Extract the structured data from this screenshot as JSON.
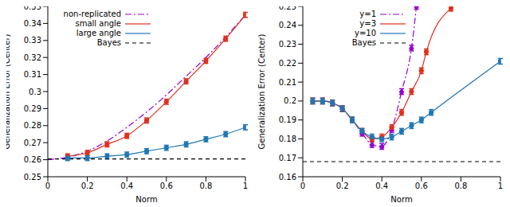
{
  "chart_data": [
    {
      "type": "line",
      "xlabel": "Norm",
      "ylabel": "Generalization Error (Center)",
      "xlim": [
        0,
        1
      ],
      "xticks": [
        0,
        0.2,
        0.4,
        0.6,
        0.8,
        1
      ],
      "ylim": [
        0.25,
        0.35
      ],
      "yticks": [
        0.25,
        0.26,
        0.27,
        0.28,
        0.29,
        0.3,
        0.31,
        0.32,
        0.33,
        0.34,
        0.35
      ],
      "legend": "upper left",
      "series": [
        {
          "name": "non-replicated",
          "color": "#9400d3",
          "line_style": "dashdot",
          "marker": "none",
          "x": [
            0,
            0.1,
            0.2,
            0.3,
            0.4,
            0.5,
            0.6,
            0.7,
            0.8,
            0.9,
            1
          ],
          "values": [
            0.26,
            0.2615,
            0.265,
            0.271,
            0.279,
            0.288,
            0.298,
            0.309,
            0.32,
            0.332,
            0.345
          ]
        },
        {
          "name": "small angle",
          "color": "#e0301e",
          "line_style": "solid",
          "marker": "circle",
          "x": [
            0.1,
            0.2,
            0.3,
            0.4,
            0.5,
            0.6,
            0.7,
            0.8,
            0.9,
            1
          ],
          "values": [
            0.262,
            0.264,
            0.269,
            0.274,
            0.283,
            0.294,
            0.306,
            0.318,
            0.331,
            0.345
          ],
          "error": [
            0.0015,
            0.0015,
            0.0015,
            0.0015,
            0.0015,
            0.0015,
            0.0015,
            0.0015,
            0.0015,
            0.0015
          ]
        },
        {
          "name": "large angle",
          "color": "#1f77b4",
          "line_style": "solid",
          "marker": "circle",
          "x": [
            0.1,
            0.2,
            0.3,
            0.4,
            0.5,
            0.6,
            0.7,
            0.8,
            0.9,
            1
          ],
          "values": [
            0.261,
            0.261,
            0.262,
            0.263,
            0.265,
            0.267,
            0.269,
            0.272,
            0.275,
            0.279
          ],
          "error": [
            0.0015,
            0.0015,
            0.0015,
            0.0015,
            0.0015,
            0.0015,
            0.0015,
            0.0015,
            0.0015,
            0.0015
          ]
        },
        {
          "name": "Bayes",
          "color": "#000000",
          "line_style": "dashed",
          "marker": "none",
          "x": [
            0,
            1
          ],
          "values": [
            0.2605,
            0.2605
          ]
        }
      ]
    },
    {
      "type": "line",
      "xlabel": "Norm",
      "ylabel": "Generalization Error (Center)",
      "xlim": [
        0,
        1
      ],
      "xticks": [
        0,
        0.2,
        0.4,
        0.6,
        0.8,
        1
      ],
      "ylim": [
        0.16,
        0.25
      ],
      "yticks": [
        0.16,
        0.17,
        0.18,
        0.19,
        0.2,
        0.21,
        0.22,
        0.23,
        0.24,
        0.25
      ],
      "legend": "upper left",
      "series": [
        {
          "name": "y=1",
          "color": "#9400d3",
          "line_style": "dashdot",
          "marker": "circle",
          "x": [
            0.05,
            0.1,
            0.15,
            0.2,
            0.25,
            0.3,
            0.35,
            0.4,
            0.45,
            0.5,
            0.55,
            0.575
          ],
          "values": [
            0.2,
            0.2,
            0.199,
            0.196,
            0.19,
            0.183,
            0.177,
            0.176,
            0.185,
            0.205,
            0.228,
            0.25
          ],
          "error": [
            0.0015,
            0.0015,
            0.0015,
            0.0015,
            0.0015,
            0.0015,
            0.0015,
            0.0015,
            0.0015,
            0.0015,
            0.0015,
            0.0015
          ]
        },
        {
          "name": "y=3",
          "color": "#e0301e",
          "line_style": "solid",
          "marker": "circle",
          "x": [
            0.05,
            0.1,
            0.15,
            0.2,
            0.25,
            0.3,
            0.35,
            0.4,
            0.45,
            0.5,
            0.55,
            0.6,
            0.625,
            0.75
          ],
          "values": [
            0.2,
            0.2,
            0.199,
            0.196,
            0.19,
            0.184,
            0.18,
            0.181,
            0.186,
            0.194,
            0.205,
            0.216,
            0.226,
            0.249
          ],
          "error": [
            0.0015,
            0.0015,
            0.0015,
            0.0015,
            0.0015,
            0.0015,
            0.0015,
            0.0015,
            0.0015,
            0.0015,
            0.0015,
            0.0015,
            0.0015,
            0.0015
          ]
        },
        {
          "name": "y=10",
          "color": "#1f77b4",
          "line_style": "solid",
          "marker": "circle",
          "x": [
            0.05,
            0.1,
            0.15,
            0.2,
            0.25,
            0.3,
            0.35,
            0.4,
            0.45,
            0.5,
            0.55,
            0.6,
            0.65,
            1
          ],
          "values": [
            0.2,
            0.2,
            0.199,
            0.196,
            0.19,
            0.184,
            0.181,
            0.18,
            0.181,
            0.184,
            0.187,
            0.19,
            0.194,
            0.221
          ],
          "error": [
            0.0015,
            0.0015,
            0.0015,
            0.0015,
            0.0015,
            0.0015,
            0.0015,
            0.0015,
            0.0015,
            0.0015,
            0.0015,
            0.0015,
            0.0015,
            0.0015
          ]
        },
        {
          "name": "Bayes",
          "color": "#000000",
          "line_style": "dashed",
          "marker": "none",
          "x": [
            0,
            1
          ],
          "values": [
            0.168,
            0.168
          ]
        }
      ]
    }
  ]
}
